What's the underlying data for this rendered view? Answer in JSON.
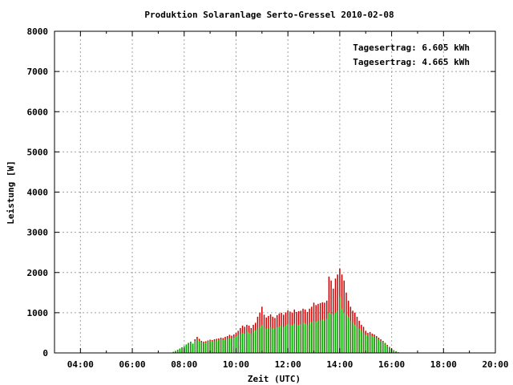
{
  "chart_data": {
    "type": "bar",
    "title": "Produktion Solaranlage Serto-Gressel 2010-02-08",
    "xlabel": "Zeit (UTC)",
    "ylabel": "Leistung [W]",
    "ylim": [
      0,
      8000
    ],
    "xlim_hours": [
      3,
      20
    ],
    "y_ticks": [
      "0",
      "1000",
      "2000",
      "3000",
      "4000",
      "5000",
      "6000",
      "7000",
      "8000"
    ],
    "x_ticks": [
      "04:00",
      "06:00",
      "08:00",
      "10:00",
      "12:00",
      "14:00",
      "16:00",
      "18:00",
      "20:00"
    ],
    "grid": true,
    "legend_position": "top-right",
    "series": [
      {
        "name": "Tagesertrag: 6.605 kWh",
        "color": "#cc0000",
        "x": [
          "07:35",
          "07:40",
          "07:45",
          "07:50",
          "07:55",
          "08:00",
          "08:05",
          "08:10",
          "08:15",
          "08:20",
          "08:25",
          "08:30",
          "08:35",
          "08:40",
          "08:45",
          "08:50",
          "08:55",
          "09:00",
          "09:05",
          "09:10",
          "09:15",
          "09:20",
          "09:25",
          "09:30",
          "09:35",
          "09:40",
          "09:45",
          "09:50",
          "09:55",
          "10:00",
          "10:05",
          "10:10",
          "10:15",
          "10:20",
          "10:25",
          "10:30",
          "10:35",
          "10:40",
          "10:45",
          "10:50",
          "10:55",
          "11:00",
          "11:05",
          "11:10",
          "11:15",
          "11:20",
          "11:25",
          "11:30",
          "11:35",
          "11:40",
          "11:45",
          "11:50",
          "11:55",
          "12:00",
          "12:05",
          "12:10",
          "12:15",
          "12:20",
          "12:25",
          "12:30",
          "12:35",
          "12:40",
          "12:45",
          "12:50",
          "12:55",
          "13:00",
          "13:05",
          "13:10",
          "13:15",
          "13:20",
          "13:25",
          "13:30",
          "13:35",
          "13:40",
          "13:45",
          "13:50",
          "13:55",
          "14:00",
          "14:05",
          "14:10",
          "14:15",
          "14:20",
          "14:25",
          "14:30",
          "14:35",
          "14:40",
          "14:45",
          "14:50",
          "14:55",
          "15:00",
          "15:05",
          "15:10",
          "15:15",
          "15:20",
          "15:25",
          "15:30",
          "15:35",
          "15:40",
          "15:45",
          "15:50",
          "15:55",
          "16:00",
          "16:05",
          "16:10",
          "16:15",
          "16:20",
          "16:25",
          "16:30",
          "16:35"
        ],
        "values": [
          30,
          50,
          80,
          110,
          140,
          170,
          210,
          250,
          280,
          230,
          340,
          400,
          350,
          300,
          280,
          290,
          310,
          330,
          320,
          340,
          350,
          360,
          380,
          370,
          400,
          420,
          450,
          430,
          460,
          500,
          550,
          620,
          680,
          650,
          700,
          680,
          620,
          700,
          750,
          900,
          1000,
          1150,
          950,
          880,
          920,
          960,
          900,
          870,
          940,
          980,
          1000,
          950,
          1010,
          1060,
          1030,
          1000,
          1080,
          1020,
          1040,
          1050,
          1100,
          1080,
          1020,
          1100,
          1150,
          1250,
          1190,
          1220,
          1240,
          1260,
          1250,
          1300,
          1900,
          1800,
          1600,
          1850,
          1950,
          2100,
          1950,
          1800,
          1500,
          1300,
          1150,
          1050,
          1000,
          900,
          800,
          700,
          650,
          550,
          500,
          520,
          480,
          460,
          420,
          380,
          340,
          300,
          250,
          200,
          150,
          100,
          70,
          40,
          20,
          0,
          0,
          0,
          0
        ]
      },
      {
        "name": "Tagesertrag: 4.665 kWh",
        "color": "#00aa00",
        "x": [
          "07:35",
          "07:40",
          "07:45",
          "07:50",
          "07:55",
          "08:00",
          "08:05",
          "08:10",
          "08:15",
          "08:20",
          "08:25",
          "08:30",
          "08:35",
          "08:40",
          "08:45",
          "08:50",
          "08:55",
          "09:00",
          "09:05",
          "09:10",
          "09:15",
          "09:20",
          "09:25",
          "09:30",
          "09:35",
          "09:40",
          "09:45",
          "09:50",
          "09:55",
          "10:00",
          "10:05",
          "10:10",
          "10:15",
          "10:20",
          "10:25",
          "10:30",
          "10:35",
          "10:40",
          "10:45",
          "10:50",
          "10:55",
          "11:00",
          "11:05",
          "11:10",
          "11:15",
          "11:20",
          "11:25",
          "11:30",
          "11:35",
          "11:40",
          "11:45",
          "11:50",
          "11:55",
          "12:00",
          "12:05",
          "12:10",
          "12:15",
          "12:20",
          "12:25",
          "12:30",
          "12:35",
          "12:40",
          "12:45",
          "12:50",
          "12:55",
          "13:00",
          "13:05",
          "13:10",
          "13:15",
          "13:20",
          "13:25",
          "13:30",
          "13:35",
          "13:40",
          "13:45",
          "13:50",
          "13:55",
          "14:00",
          "14:05",
          "14:10",
          "14:15",
          "14:20",
          "14:25",
          "14:30",
          "14:35",
          "14:40",
          "14:45",
          "14:50",
          "14:55",
          "15:00",
          "15:05",
          "15:10",
          "15:15",
          "15:20",
          "15:25",
          "15:30",
          "15:35",
          "15:40",
          "15:45",
          "15:50",
          "15:55",
          "16:00",
          "16:05",
          "16:10",
          "16:15",
          "16:20",
          "16:25",
          "16:30",
          "16:35"
        ],
        "values": [
          30,
          50,
          80,
          110,
          140,
          170,
          210,
          250,
          280,
          230,
          300,
          330,
          300,
          270,
          250,
          260,
          280,
          300,
          290,
          300,
          310,
          320,
          330,
          320,
          340,
          350,
          370,
          360,
          380,
          410,
          440,
          470,
          500,
          480,
          520,
          500,
          470,
          520,
          560,
          610,
          650,
          700,
          630,
          600,
          620,
          650,
          610,
          600,
          640,
          660,
          680,
          650,
          690,
          720,
          700,
          680,
          730,
          690,
          700,
          720,
          750,
          730,
          700,
          750,
          770,
          800,
          780,
          800,
          810,
          830,
          820,
          850,
          1000,
          980,
          950,
          1000,
          1050,
          1400,
          1100,
          1000,
          950,
          900,
          800,
          750,
          700,
          650,
          600,
          550,
          500,
          450,
          430,
          440,
          420,
          400,
          370,
          340,
          300,
          270,
          230,
          180,
          140,
          100,
          70,
          40,
          20,
          0,
          0,
          0,
          0
        ]
      }
    ]
  }
}
